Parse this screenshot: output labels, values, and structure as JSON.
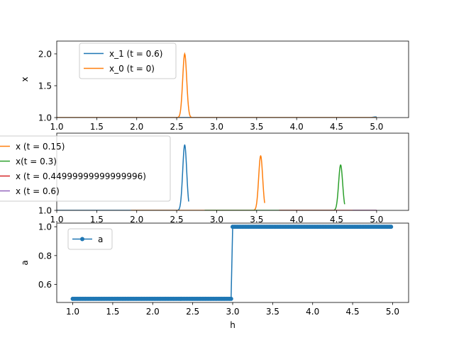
{
  "chart_data": [
    {
      "type": "line",
      "ylabel": "x",
      "xlabel": "",
      "xlim": [
        1.0,
        5.4
      ],
      "ylim": [
        1.0,
        2.2
      ],
      "xticks": [
        "1.0",
        "1.5",
        "2.0",
        "2.5",
        "3.0",
        "3.5",
        "4.0",
        "4.5",
        "5.0"
      ],
      "yticks": [
        "1.0",
        "1.5",
        "2.0"
      ],
      "legend_position": "upper-left",
      "series": [
        {
          "name": "x_1 (t = 0.6)",
          "color": "#1f77b4",
          "x_range": [
            1.0,
            5.0
          ],
          "baseline": 1.0,
          "peaks": [
            {
              "x": 4.99,
              "height": 1.01,
              "width": 0.03
            }
          ]
        },
        {
          "name": "x_0 (t = 0)",
          "color": "#ff7f0e",
          "x_range": [
            1.0,
            5.0
          ],
          "baseline": 1.0,
          "peaks": [
            {
              "x": 2.6,
              "height": 2.0,
              "width": 0.025
            }
          ]
        }
      ]
    },
    {
      "type": "line",
      "ylabel": "",
      "xlabel": "",
      "xlim": [
        1.0,
        5.4
      ],
      "ylim": [
        1.0,
        1.85
      ],
      "xticks": [
        "1.0",
        "1.5",
        "2.0",
        "2.5",
        "3.0",
        "3.5",
        "4.0",
        "4.5",
        "5.0"
      ],
      "yticks": [
        "1.0"
      ],
      "legend_position": "left (clipped)",
      "series": [
        {
          "name": "",
          "color": "#1f77b4",
          "x_range": [
            1.0,
            2.65
          ],
          "baseline": 1.0,
          "peaks": [
            {
              "x": 2.6,
              "height": 1.72,
              "width": 0.025
            }
          ]
        },
        {
          "name": "x (t = 0.15)",
          "color": "#ff7f0e",
          "x_range": [
            1.93,
            3.6
          ],
          "baseline": 1.0,
          "peaks": [
            {
              "x": 3.55,
              "height": 1.6,
              "width": 0.025
            }
          ]
        },
        {
          "name": "x(t = 0.3)",
          "color": "#2ca02c",
          "x_range": [
            2.85,
            4.6
          ],
          "baseline": 1.0,
          "peaks": [
            {
              "x": 4.55,
              "height": 1.5,
              "width": 0.025
            }
          ]
        },
        {
          "name": "x (t = 0.44999999999999996)",
          "color": "#d62728",
          "x_range": [
            3.78,
            5.0
          ],
          "baseline": 1.0,
          "peaks": []
        },
        {
          "name": "x (t = 0.6)",
          "color": "#9467bd",
          "x_range": [
            4.7,
            5.0
          ],
          "baseline": 1.0,
          "peaks": []
        }
      ]
    },
    {
      "type": "line",
      "ylabel": "a",
      "xlabel": "h",
      "xlim": [
        0.8,
        5.2
      ],
      "ylim": [
        0.475,
        1.025
      ],
      "xticks": [
        "1.0",
        "1.5",
        "2.0",
        "2.5",
        "3.0",
        "3.5",
        "4.0",
        "4.5",
        "5.0"
      ],
      "yticks": [
        "0.6",
        "0.8",
        "1.0"
      ],
      "legend_position": "upper-left",
      "series": [
        {
          "name": "a",
          "color": "#1f77b4",
          "marker": "circle",
          "x_start": 1.0,
          "x_end": 4.98,
          "x_step": 0.02,
          "step_at": 3.0,
          "value_before": 0.5,
          "value_after": 1.0
        }
      ]
    }
  ]
}
